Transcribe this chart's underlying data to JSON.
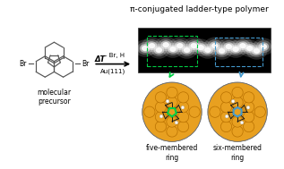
{
  "title": "π-conjugated ladder-type polymer",
  "arrow_text_top": "- Br, H",
  "arrow_text_bottom": "ΔT",
  "arrow_text_surface": "Au(111)",
  "label_mol": "molecular\nprecursor",
  "label_five": "five-membered\nring",
  "label_six": "six-membered\nring",
  "bg_color": "#ffffff",
  "gold_color": "#E8A020",
  "dark_gold": "#B87000",
  "carbon_color": "#1a1a1a",
  "green_color": "#00CC44",
  "blue_color": "#4499CC",
  "title_fontsize": 6.5,
  "label_fontsize": 5.5,
  "reaction_fontsize": 5.0,
  "br_fontsize": 5.5
}
